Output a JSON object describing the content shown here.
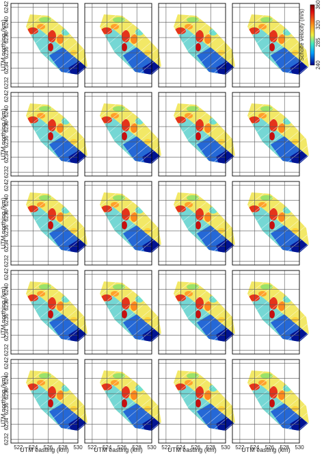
{
  "chart_data": {
    "type": "heatmap",
    "layout": "5 rows x 4 columns of map panels",
    "xlabel": "UTM easting (km)",
    "ylabel": "UTM northing (km)",
    "x_ticks": [
      "522",
      "524",
      "526",
      "528",
      "530"
    ],
    "y_ticks": [
      "6242",
      "6240",
      "6238",
      "6236",
      "6234",
      "6232"
    ],
    "xlim": [
      521,
      530
    ],
    "ylim": [
      6231.5,
      6242.5
    ],
    "grid": true,
    "colorbar": {
      "label": "Scholte velocity (m/s)",
      "ticks": [
        "360",
        "320",
        "285",
        "240"
      ],
      "range": [
        240,
        360
      ],
      "colormap": "jet",
      "placement": "top-right"
    },
    "colors": {
      "low": "#00008b",
      "mid_low": "#00c8ff",
      "mid": "#f0f040",
      "high": "#e01010",
      "max": "#7a0000",
      "grid": "#555555",
      "frame": "#000000"
    }
  }
}
